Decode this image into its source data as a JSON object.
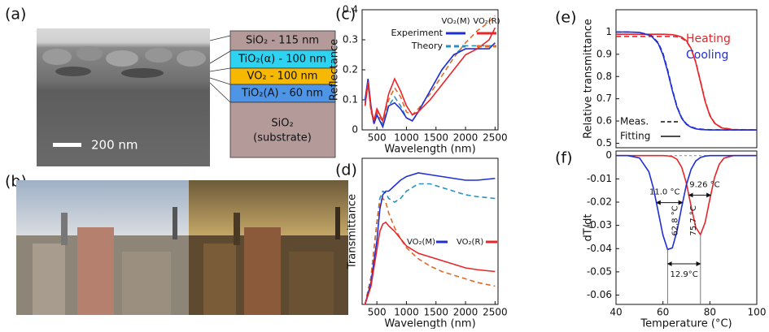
{
  "panel_labels": [
    "(a)",
    "(b)",
    "(c)",
    "(d)",
    "(e)",
    "(f)"
  ],
  "sem": {
    "scale_bar": "200 nm",
    "layers": [
      "SiO₂ - 115 nm",
      "TiO₂(α) - 100 nm",
      "VO₂ - 100 nm",
      "TiO₂(A) - 60 nm"
    ],
    "substrate": [
      "SiO₂",
      "(substrate)"
    ]
  },
  "chart_data": [
    {
      "type": "line",
      "xlabel": "Wavelength (nm)",
      "ylabel": "Reflectance",
      "x": [
        300,
        350,
        400,
        450,
        500,
        550,
        600,
        700,
        800,
        900,
        1000,
        1100,
        1200,
        1400,
        1600,
        1800,
        2000,
        2200,
        2400,
        2500
      ],
      "series": [
        {
          "name": "VO₂(M)",
          "color": "#1f2fd6",
          "values": [
            0.1,
            0.17,
            0.08,
            0.02,
            0.05,
            0.03,
            0.01,
            0.08,
            0.09,
            0.07,
            0.04,
            0.03,
            0.06,
            0.13,
            0.2,
            0.25,
            0.27,
            0.27,
            0.27,
            0.29
          ]
        },
        {
          "name": "VO₂(R)",
          "color": "#e8262a",
          "values": [
            0.08,
            0.16,
            0.07,
            0.03,
            0.07,
            0.05,
            0.03,
            0.12,
            0.17,
            0.13,
            0.08,
            0.05,
            0.06,
            0.1,
            0.15,
            0.2,
            0.25,
            0.27,
            0.3,
            0.34
          ]
        }
      ],
      "dashed_series": [
        {
          "color": "#2b8fbf",
          "values": [
            0.09,
            0.16,
            0.07,
            0.02,
            0.05,
            0.03,
            0.02,
            0.08,
            0.11,
            0.08,
            0.04,
            0.03,
            0.06,
            0.13,
            0.2,
            0.25,
            0.28,
            0.28,
            0.28,
            0.28
          ]
        },
        {
          "color": "#e06a28",
          "values": [
            0.08,
            0.15,
            0.06,
            0.03,
            0.06,
            0.04,
            0.03,
            0.1,
            0.14,
            0.11,
            0.06,
            0.05,
            0.07,
            0.12,
            0.18,
            0.24,
            0.29,
            0.33,
            0.36,
            0.38
          ]
        }
      ],
      "style_legend": [
        "Experiment",
        "Theory"
      ],
      "xlim": [
        250,
        2550
      ],
      "xticks": [
        500,
        1000,
        1500,
        2000,
        2500
      ],
      "ylim": [
        0,
        0.4
      ],
      "yticks": [
        0,
        0.1,
        0.2,
        0.3,
        0.4
      ]
    },
    {
      "type": "line",
      "xlabel": "Wavelength (nm)",
      "ylabel": "Transmittance",
      "x": [
        300,
        400,
        500,
        550,
        600,
        650,
        700,
        800,
        900,
        1000,
        1200,
        1400,
        1600,
        1800,
        2000,
        2200,
        2500
      ],
      "series": [
        {
          "name": "VO₂(M)",
          "color": "#1f2fd6",
          "values": [
            0.0,
            0.12,
            0.35,
            0.52,
            0.6,
            0.62,
            0.62,
            0.65,
            0.68,
            0.7,
            0.72,
            0.71,
            0.7,
            0.69,
            0.68,
            0.68,
            0.69
          ]
        },
        {
          "name": "VO₂(R)",
          "color": "#e8262a",
          "values": [
            0.0,
            0.1,
            0.3,
            0.4,
            0.44,
            0.45,
            0.43,
            0.4,
            0.36,
            0.32,
            0.28,
            0.26,
            0.24,
            0.22,
            0.2,
            0.19,
            0.18
          ]
        }
      ],
      "dashed_series": [
        {
          "color": "#2b8fbf",
          "values": [
            0.0,
            0.15,
            0.45,
            0.58,
            0.62,
            0.61,
            0.58,
            0.56,
            0.58,
            0.62,
            0.66,
            0.66,
            0.64,
            0.62,
            0.6,
            0.59,
            0.58
          ]
        },
        {
          "color": "#e06a28",
          "values": [
            0.0,
            0.15,
            0.45,
            0.56,
            0.58,
            0.56,
            0.5,
            0.42,
            0.36,
            0.31,
            0.25,
            0.21,
            0.18,
            0.16,
            0.14,
            0.12,
            0.1
          ]
        }
      ],
      "xlim": [
        250,
        2550
      ],
      "xticks": [
        500,
        1000,
        1500,
        2000,
        2500
      ],
      "ylim": [
        0,
        0.8
      ]
    },
    {
      "type": "line",
      "ylabel": "Relative transmittance",
      "x": [
        40,
        45,
        50,
        55,
        58,
        60,
        62,
        64,
        66,
        68,
        70,
        72,
        74,
        76,
        78,
        80,
        82,
        85,
        90,
        95,
        100
      ],
      "series": [
        {
          "name": "Heating",
          "color": "#e8262a",
          "values": [
            0.99,
            0.99,
            0.99,
            0.99,
            0.99,
            0.99,
            0.989,
            0.988,
            0.984,
            0.977,
            0.961,
            0.926,
            0.863,
            0.775,
            0.687,
            0.624,
            0.59,
            0.569,
            0.561,
            0.56,
            0.56
          ]
        },
        {
          "name": "Cooling",
          "color": "#1f2fd6",
          "values": [
            1.0,
            1.0,
            0.998,
            0.983,
            0.948,
            0.898,
            0.823,
            0.737,
            0.662,
            0.612,
            0.585,
            0.572,
            0.565,
            0.562,
            0.561,
            0.56,
            0.56,
            0.56,
            0.56,
            0.56,
            0.56
          ]
        }
      ],
      "dashed_series": [
        {
          "color": "#e8262a",
          "values": [
            0.98,
            0.98,
            0.98,
            0.98,
            0.98,
            0.98,
            0.98,
            0.98,
            0.978,
            0.972,
            0.958,
            0.925,
            0.865,
            0.78,
            0.69,
            0.627,
            0.592,
            0.57,
            0.562,
            0.561,
            0.56
          ]
        },
        {
          "color": "#1f2fd6",
          "values": [
            1.0,
            1.0,
            0.998,
            0.985,
            0.952,
            0.905,
            0.83,
            0.742,
            0.665,
            0.615,
            0.587,
            0.574,
            0.567,
            0.564,
            0.562,
            0.561,
            0.561,
            0.56,
            0.56,
            0.56,
            0.56
          ]
        }
      ],
      "style_legend": [
        "Fitting",
        "Meas."
      ],
      "xlim": [
        40,
        100
      ],
      "ylim": [
        0.48,
        1.1
      ],
      "yticks": [
        1,
        0.9,
        0.8,
        0.7,
        0.6,
        0.5
      ]
    },
    {
      "type": "line",
      "xlabel": "Temperature (°C)",
      "ylabel": "dT/dt",
      "x": [
        40,
        45,
        50,
        54,
        56,
        58,
        60,
        62,
        64,
        66,
        68,
        70,
        72,
        74,
        76,
        78,
        80,
        82,
        84,
        86,
        90,
        95,
        100
      ],
      "series": [
        {
          "name": "Heating",
          "color": "#e8262a",
          "values": [
            0,
            0,
            0,
            0,
            0,
            0,
            0,
            -0.0001,
            -0.0004,
            -0.0016,
            -0.005,
            -0.0119,
            -0.0218,
            -0.0309,
            -0.034,
            -0.0287,
            -0.0187,
            -0.0094,
            -0.0037,
            -0.0011,
            0,
            0,
            0
          ]
        },
        {
          "name": "Cooling",
          "color": "#1f2fd6",
          "values": [
            0,
            0,
            -0.001,
            -0.0069,
            -0.0142,
            -0.0242,
            -0.0342,
            -0.0404,
            -0.0397,
            -0.0324,
            -0.0221,
            -0.0125,
            -0.0059,
            -0.0023,
            -0.0008,
            -0.0002,
            0,
            0,
            0,
            0,
            0,
            0,
            0
          ]
        }
      ],
      "annotations": [
        "11.0 °C",
        "9.26 °C",
        "62.8 °C",
        "75.7 °C",
        "12.9°C"
      ],
      "xlim": [
        40,
        100
      ],
      "xticks": [
        40,
        60,
        80,
        100
      ],
      "ylim": [
        -0.064,
        0.002
      ],
      "yticks": [
        0,
        -0.01,
        -0.02,
        -0.03,
        -0.04,
        -0.05,
        -0.06
      ]
    }
  ]
}
